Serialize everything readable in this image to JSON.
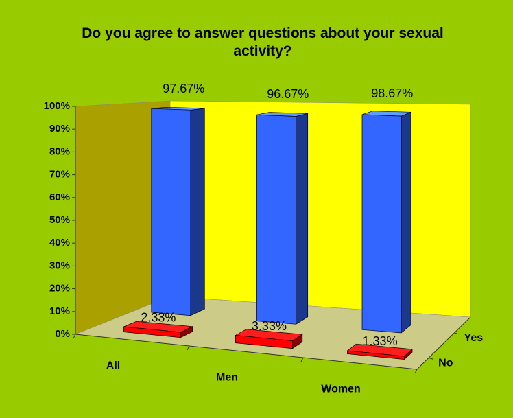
{
  "chart_data": {
    "type": "bar3d",
    "title": "Do you agree to answer questions about your sexual activity?",
    "categories": [
      "All",
      "Men",
      "Women"
    ],
    "series": [
      {
        "name": "Yes",
        "color": "#3366ff",
        "values": [
          97.67,
          96.67,
          98.67
        ],
        "value_labels": [
          "97.67%",
          "96.67%",
          "98.67%"
        ]
      },
      {
        "name": "No",
        "color": "#ff0000",
        "values": [
          2.33,
          3.33,
          1.33
        ],
        "value_labels": [
          "2.33%",
          "3.33%",
          "1.33%"
        ]
      }
    ],
    "ylim": [
      0,
      100
    ],
    "yticks": [
      {
        "value": 0,
        "label": "0%"
      },
      {
        "value": 10,
        "label": "10%"
      },
      {
        "value": 20,
        "label": "20%"
      },
      {
        "value": 30,
        "label": "30%"
      },
      {
        "value": 40,
        "label": "40%"
      },
      {
        "value": 50,
        "label": "50%"
      },
      {
        "value": 60,
        "label": "60%"
      },
      {
        "value": 70,
        "label": "70%"
      },
      {
        "value": 80,
        "label": "80%"
      },
      {
        "value": 90,
        "label": "90%"
      },
      {
        "value": 100,
        "label": "100%"
      }
    ],
    "grid": false
  }
}
